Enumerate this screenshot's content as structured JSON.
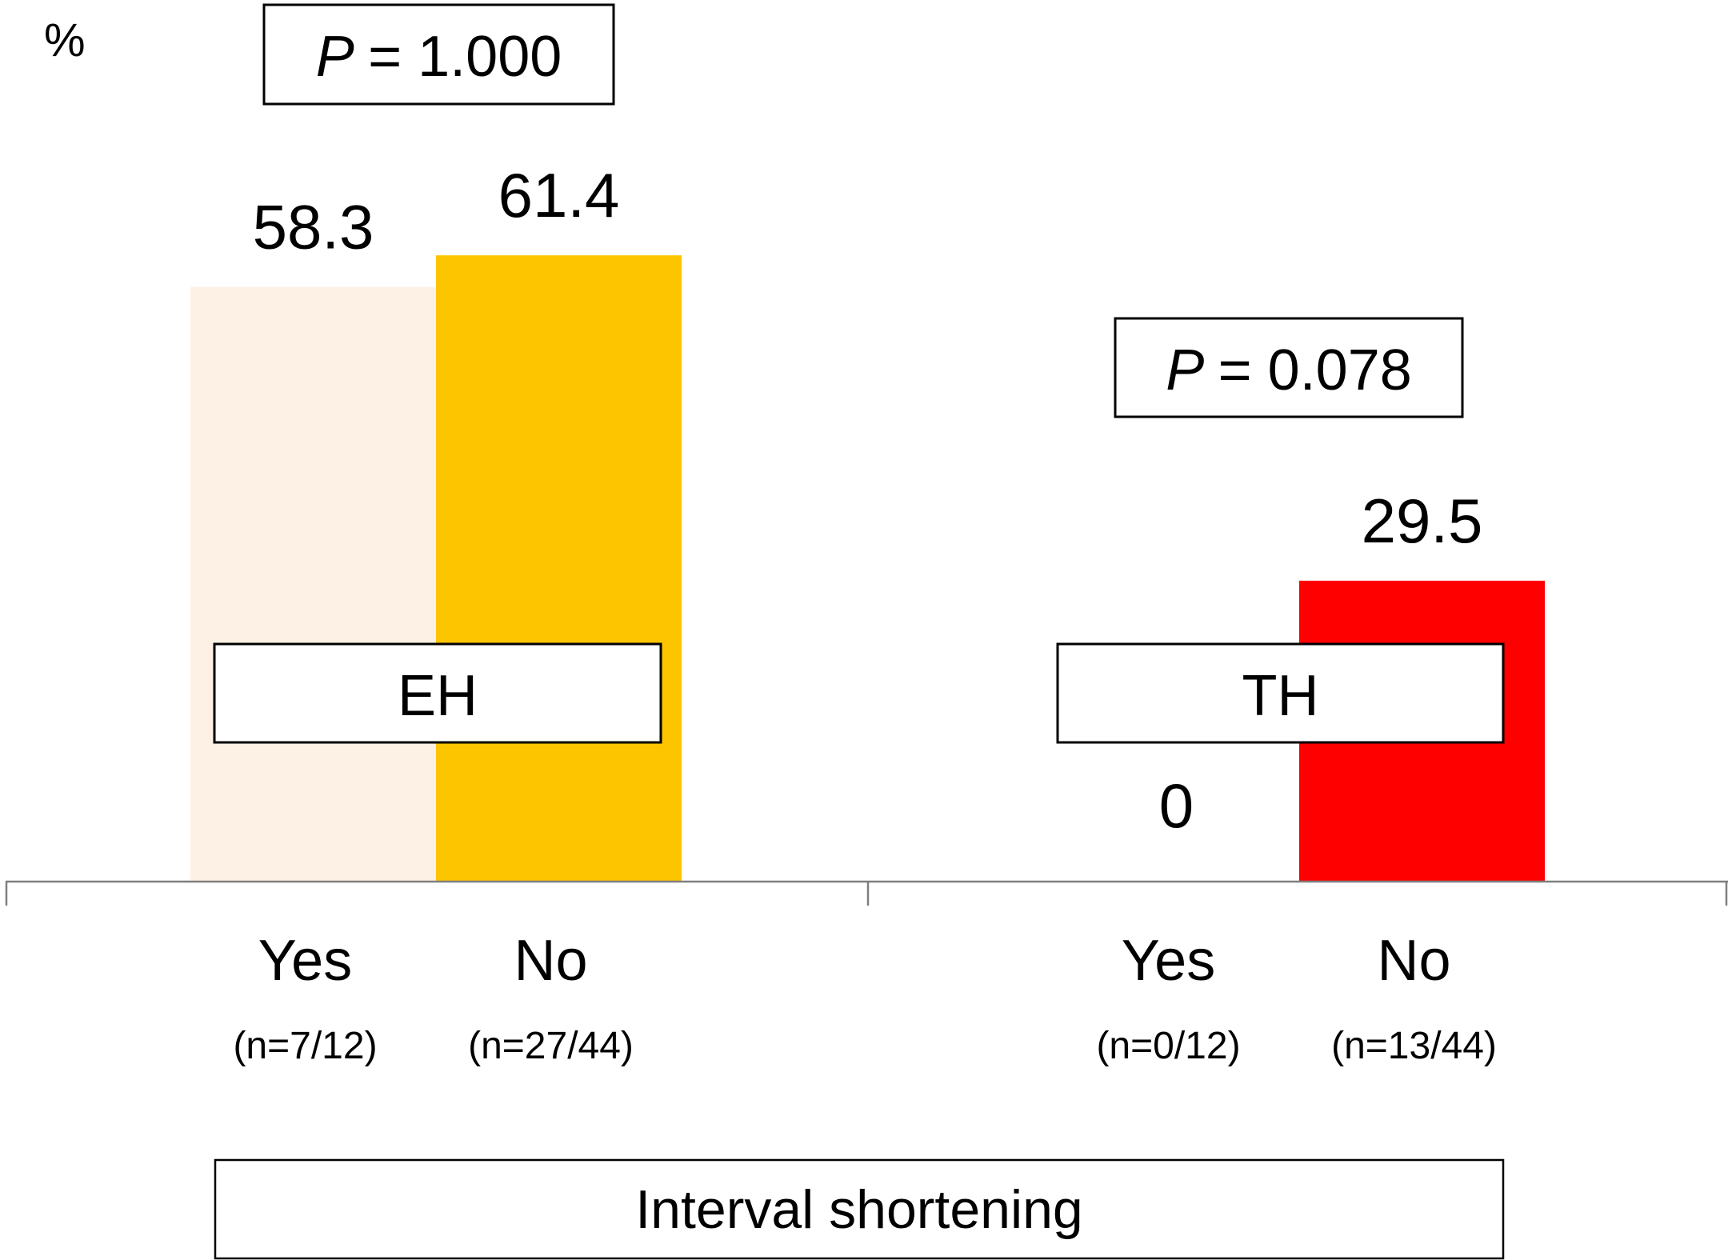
{
  "chart_data": {
    "type": "bar",
    "unit_label": "%",
    "ylim": [
      0,
      100
    ],
    "grid": false,
    "legend": "none",
    "groups": [
      {
        "name": "EH",
        "p_prefix": "P",
        "p_value": "= 1.000",
        "bars": [
          {
            "category": "Yes",
            "n_label": "(n=7/12)",
            "value": 58.3,
            "value_label": "58.3",
            "color": "#FDF1E5"
          },
          {
            "category": "No",
            "n_label": "(n=27/44)",
            "value": 61.4,
            "value_label": "61.4",
            "color": "#FDC500"
          }
        ]
      },
      {
        "name": "TH",
        "p_prefix": "P",
        "p_value": "= 0.078",
        "bars": [
          {
            "category": "Yes",
            "n_label": "(n=0/12)",
            "value": 0,
            "value_label": "0",
            "color": "#FFFFFF"
          },
          {
            "category": "No",
            "n_label": "(n=13/44)",
            "value": 29.5,
            "value_label": "29.5",
            "color": "#FF0000"
          }
        ]
      }
    ],
    "xlabel": "Interval shortening"
  }
}
